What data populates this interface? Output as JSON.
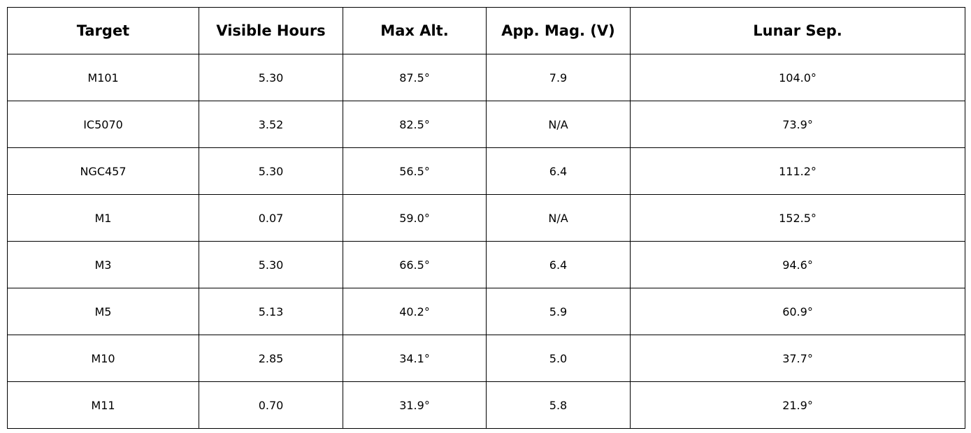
{
  "chart_data": {
    "type": "table",
    "columns": [
      "Target",
      "Visible Hours",
      "Max Alt.",
      "App. Mag. (V)",
      "Lunar Sep."
    ],
    "rows": [
      [
        "M101",
        "5.30",
        "87.5°",
        "7.9",
        "104.0°"
      ],
      [
        "IC5070",
        "3.52",
        "82.5°",
        "N/A",
        "73.9°"
      ],
      [
        "NGC457",
        "5.30",
        "56.5°",
        "6.4",
        "111.2°"
      ],
      [
        "M1",
        "0.07",
        "59.0°",
        "N/A",
        "152.5°"
      ],
      [
        "M3",
        "5.30",
        "66.5°",
        "6.4",
        "94.6°"
      ],
      [
        "M5",
        "5.13",
        "40.2°",
        "5.9",
        "60.9°"
      ],
      [
        "M10",
        "2.85",
        "34.1°",
        "5.0",
        "37.7°"
      ],
      [
        "M11",
        "0.70",
        "31.9°",
        "5.8",
        "21.9°"
      ]
    ]
  }
}
